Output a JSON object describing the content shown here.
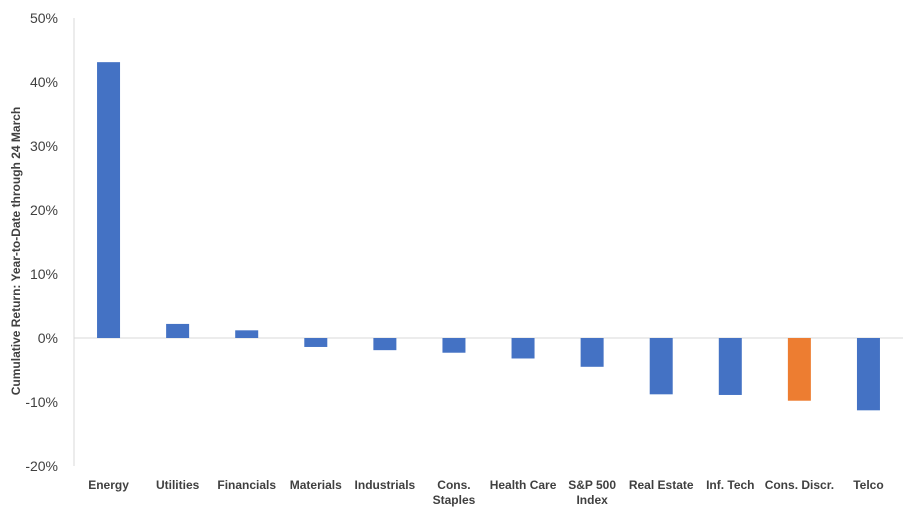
{
  "chart_data": {
    "type": "bar",
    "title": "",
    "xlabel": "",
    "ylabel": "Cumulative Return: Year-to-Date through 24 March",
    "ylim": [
      -20,
      50
    ],
    "yticks": [
      -20,
      -10,
      0,
      10,
      20,
      30,
      40,
      50
    ],
    "ytick_labels": [
      "-20%",
      "-10%",
      "0%",
      "10%",
      "20%",
      "30%",
      "40%",
      "50%"
    ],
    "grid": false,
    "legend": "none",
    "categories": [
      [
        "Energy"
      ],
      [
        "Utilities"
      ],
      [
        "Financials"
      ],
      [
        "Materials"
      ],
      [
        "Industrials"
      ],
      [
        "Cons.",
        "Staples"
      ],
      [
        "Health Care"
      ],
      [
        "S&P 500",
        "Index"
      ],
      [
        "Real Estate"
      ],
      [
        "Inf. Tech"
      ],
      [
        "Cons. Discr."
      ],
      [
        "Telco"
      ]
    ],
    "values": [
      43.1,
      2.2,
      1.2,
      -1.4,
      -1.9,
      -2.3,
      -3.2,
      -4.5,
      -8.8,
      -8.9,
      -9.8,
      -11.3
    ],
    "colors": {
      "default": "#4472C4",
      "highlight": "#ED7D31",
      "axis": "#D9D9D9",
      "text": "#404040"
    },
    "highlight_index": 10
  }
}
